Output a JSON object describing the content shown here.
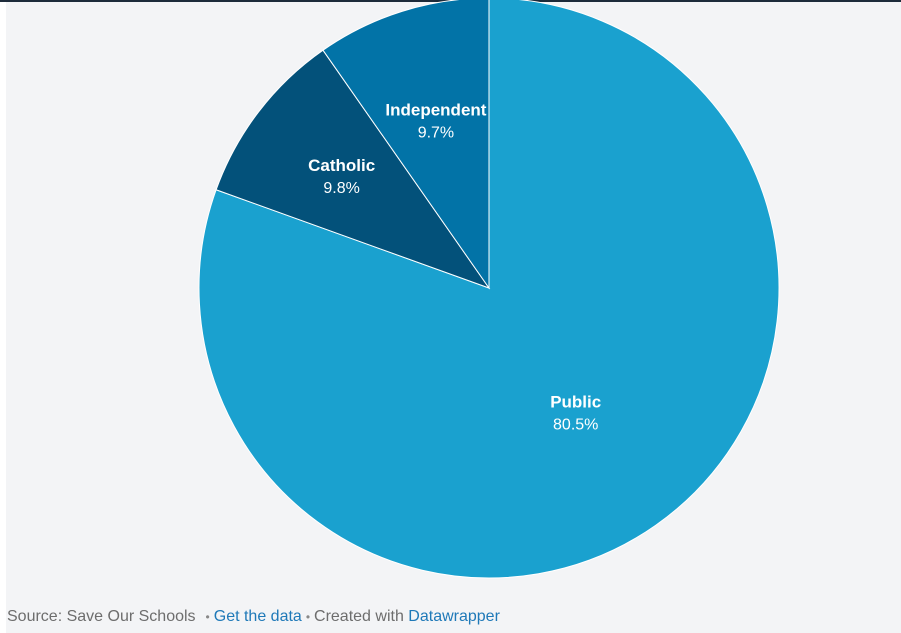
{
  "chart_data": {
    "type": "pie",
    "title": "",
    "categories": [
      "Public",
      "Catholic",
      "Independent"
    ],
    "values": [
      80.5,
      9.8,
      9.7
    ],
    "value_labels": [
      "80.5%",
      "9.8%",
      "9.7%"
    ],
    "colors": [
      "#1aa1cf",
      "#03517a",
      "#0273a7"
    ],
    "start": "12 o'clock",
    "direction": "clockwise",
    "legend": "none",
    "slice_border_color": "#ffffff"
  },
  "footer": {
    "source_text": "Source: Save Our Schools",
    "separator": "•",
    "get_data_label": "Get the data",
    "created_with_text": "Created with",
    "tool_link": "Datawrapper"
  }
}
